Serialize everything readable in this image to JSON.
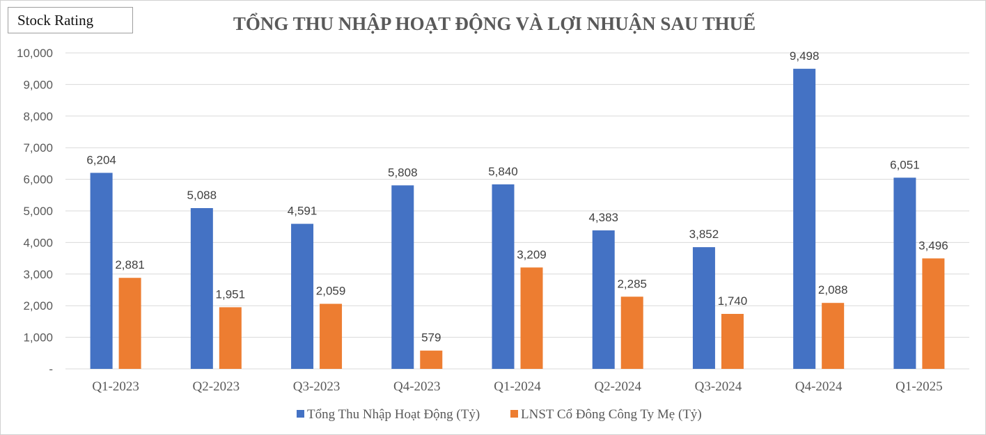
{
  "badge": {
    "label": "Stock Rating"
  },
  "chart_data": {
    "type": "bar",
    "title": "TỔNG THU NHẬP HOẠT ĐỘNG VÀ LỢI NHUẬN SAU THUẾ",
    "xlabel": "",
    "ylabel": "",
    "ylim": [
      0,
      10000
    ],
    "yticks": [
      0,
      1000,
      2000,
      3000,
      4000,
      5000,
      6000,
      7000,
      8000,
      9000,
      10000
    ],
    "ytick_labels": [
      "-",
      "1,000",
      "2,000",
      "3,000",
      "4,000",
      "5,000",
      "6,000",
      "7,000",
      "8,000",
      "9,000",
      "10,000"
    ],
    "grid": true,
    "legend_position": "bottom",
    "categories": [
      "Q1-2023",
      "Q2-2023",
      "Q3-2023",
      "Q4-2023",
      "Q1-2024",
      "Q2-2024",
      "Q3-2024",
      "Q4-2024",
      "Q1-2025"
    ],
    "series": [
      {
        "name": "Tổng Thu Nhập Hoạt Động (Tỷ)",
        "color": "#4472c4",
        "values": [
          6204,
          5088,
          4591,
          5808,
          5840,
          4383,
          3852,
          9498,
          6051
        ],
        "labels": [
          "6,204",
          "5,088",
          "4,591",
          "5,808",
          "5,840",
          "4,383",
          "3,852",
          "9,498",
          "6,051"
        ]
      },
      {
        "name": "LNST Cổ Đông Công Ty Mẹ (Tỷ)",
        "color": "#ed7d31",
        "values": [
          2881,
          1951,
          2059,
          579,
          3209,
          2285,
          1740,
          2088,
          3496
        ],
        "labels": [
          "2,881",
          "1,951",
          "2,059",
          "579",
          "3,209",
          "2,285",
          "1,740",
          "2,088",
          "3,496"
        ]
      }
    ]
  }
}
